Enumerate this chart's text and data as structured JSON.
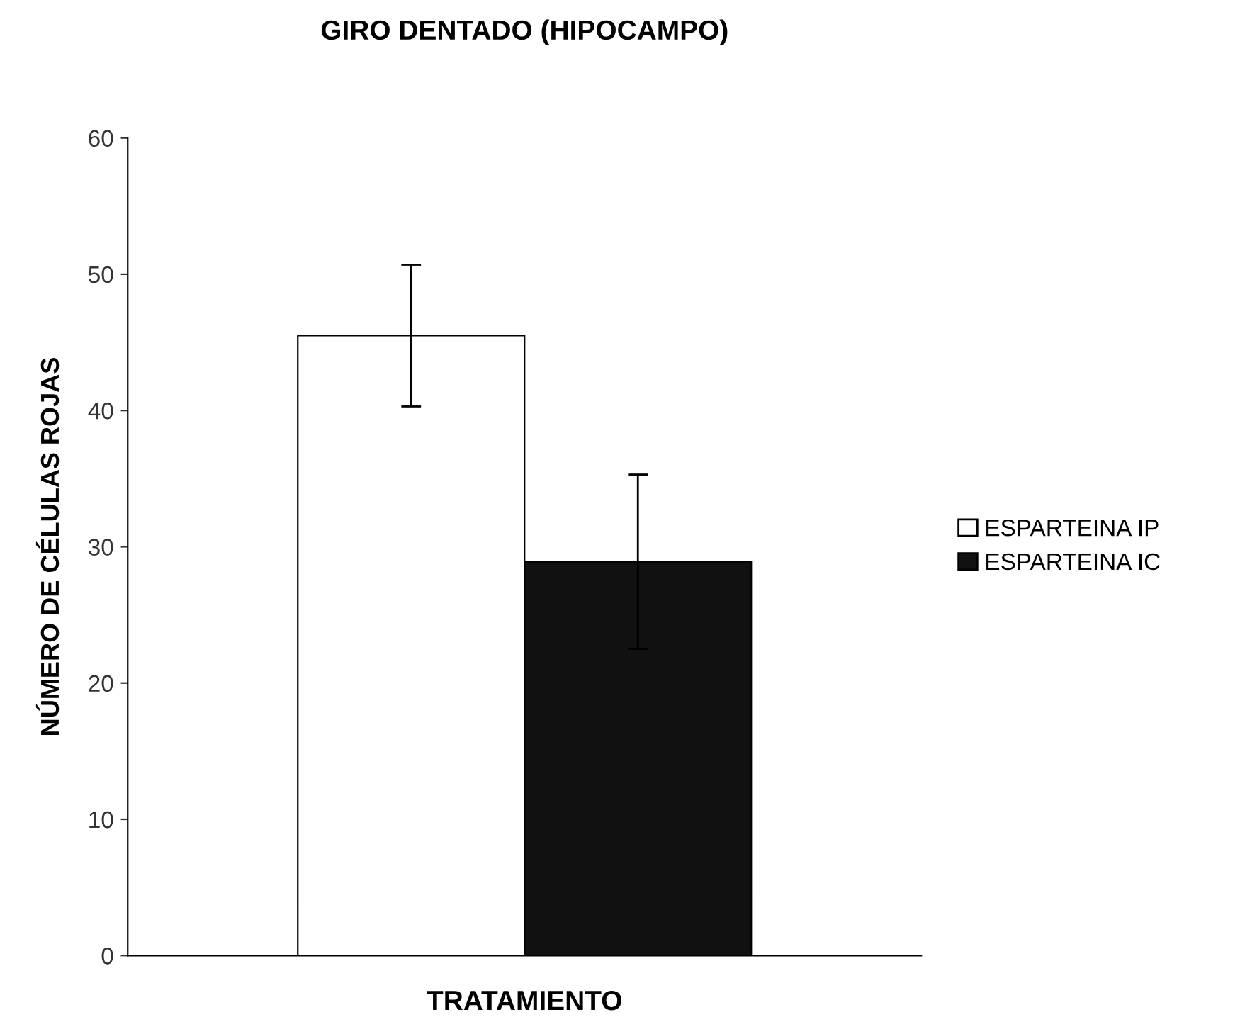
{
  "chart_data": {
    "type": "bar",
    "title": "GIRO DENTADO (HIPOCAMPO)",
    "xlabel": "TRATAMIENTO",
    "ylabel": "NÚMERO DE CÉLULAS ROJAS",
    "categories": [
      null
    ],
    "series": [
      {
        "name": "ESPARTEINA IP",
        "color": "#ffffff",
        "values": [
          45.5
        ],
        "errors": [
          5.2
        ]
      },
      {
        "name": "ESPARTEINA IC",
        "color": "#111111",
        "values": [
          28.9
        ],
        "errors": [
          6.4
        ]
      }
    ],
    "ylim": [
      0,
      60
    ],
    "yticks": [
      0,
      10,
      20,
      30,
      40,
      50,
      60
    ],
    "grid": false,
    "legend": "right"
  }
}
